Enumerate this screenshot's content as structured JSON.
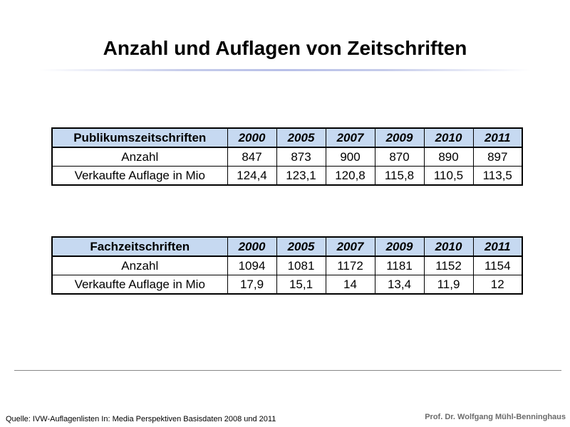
{
  "title": "Anzahl und Auflagen von Zeitschriften",
  "colors": {
    "header_bg": "#c6d9f1",
    "rule": "#b8c0e8",
    "author": "#6b6b6b"
  },
  "tables": [
    {
      "header": "Publikumszeitschriften",
      "years": [
        "2000",
        "2005",
        "2007",
        "2009",
        "2010",
        "2011"
      ],
      "rows": [
        {
          "label": "Anzahl",
          "values": [
            "847",
            "873",
            "900",
            "870",
            "890",
            "897"
          ]
        },
        {
          "label": "Verkaufte Auflage in Mio",
          "values": [
            "124,4",
            "123,1",
            "120,8",
            "115,8",
            "110,5",
            "113,5"
          ]
        }
      ]
    },
    {
      "header": "Fachzeitschriften",
      "years": [
        "2000",
        "2005",
        "2007",
        "2009",
        "2010",
        "2011"
      ],
      "rows": [
        {
          "label": "Anzahl",
          "values": [
            "1094",
            "1081",
            "1172",
            "1181",
            "1152",
            "1154"
          ]
        },
        {
          "label": "Verkaufte Auflage in Mio",
          "values": [
            "17,9",
            "15,1",
            "14",
            "13,4",
            "11,9",
            "12"
          ]
        }
      ]
    }
  ],
  "footer": {
    "source": "Quelle: IVW-Auflagenlisten In: Media Perspektiven Basisdaten 2008 und 2011",
    "author": "Prof. Dr. Wolfgang Mühl-Benninghaus"
  }
}
